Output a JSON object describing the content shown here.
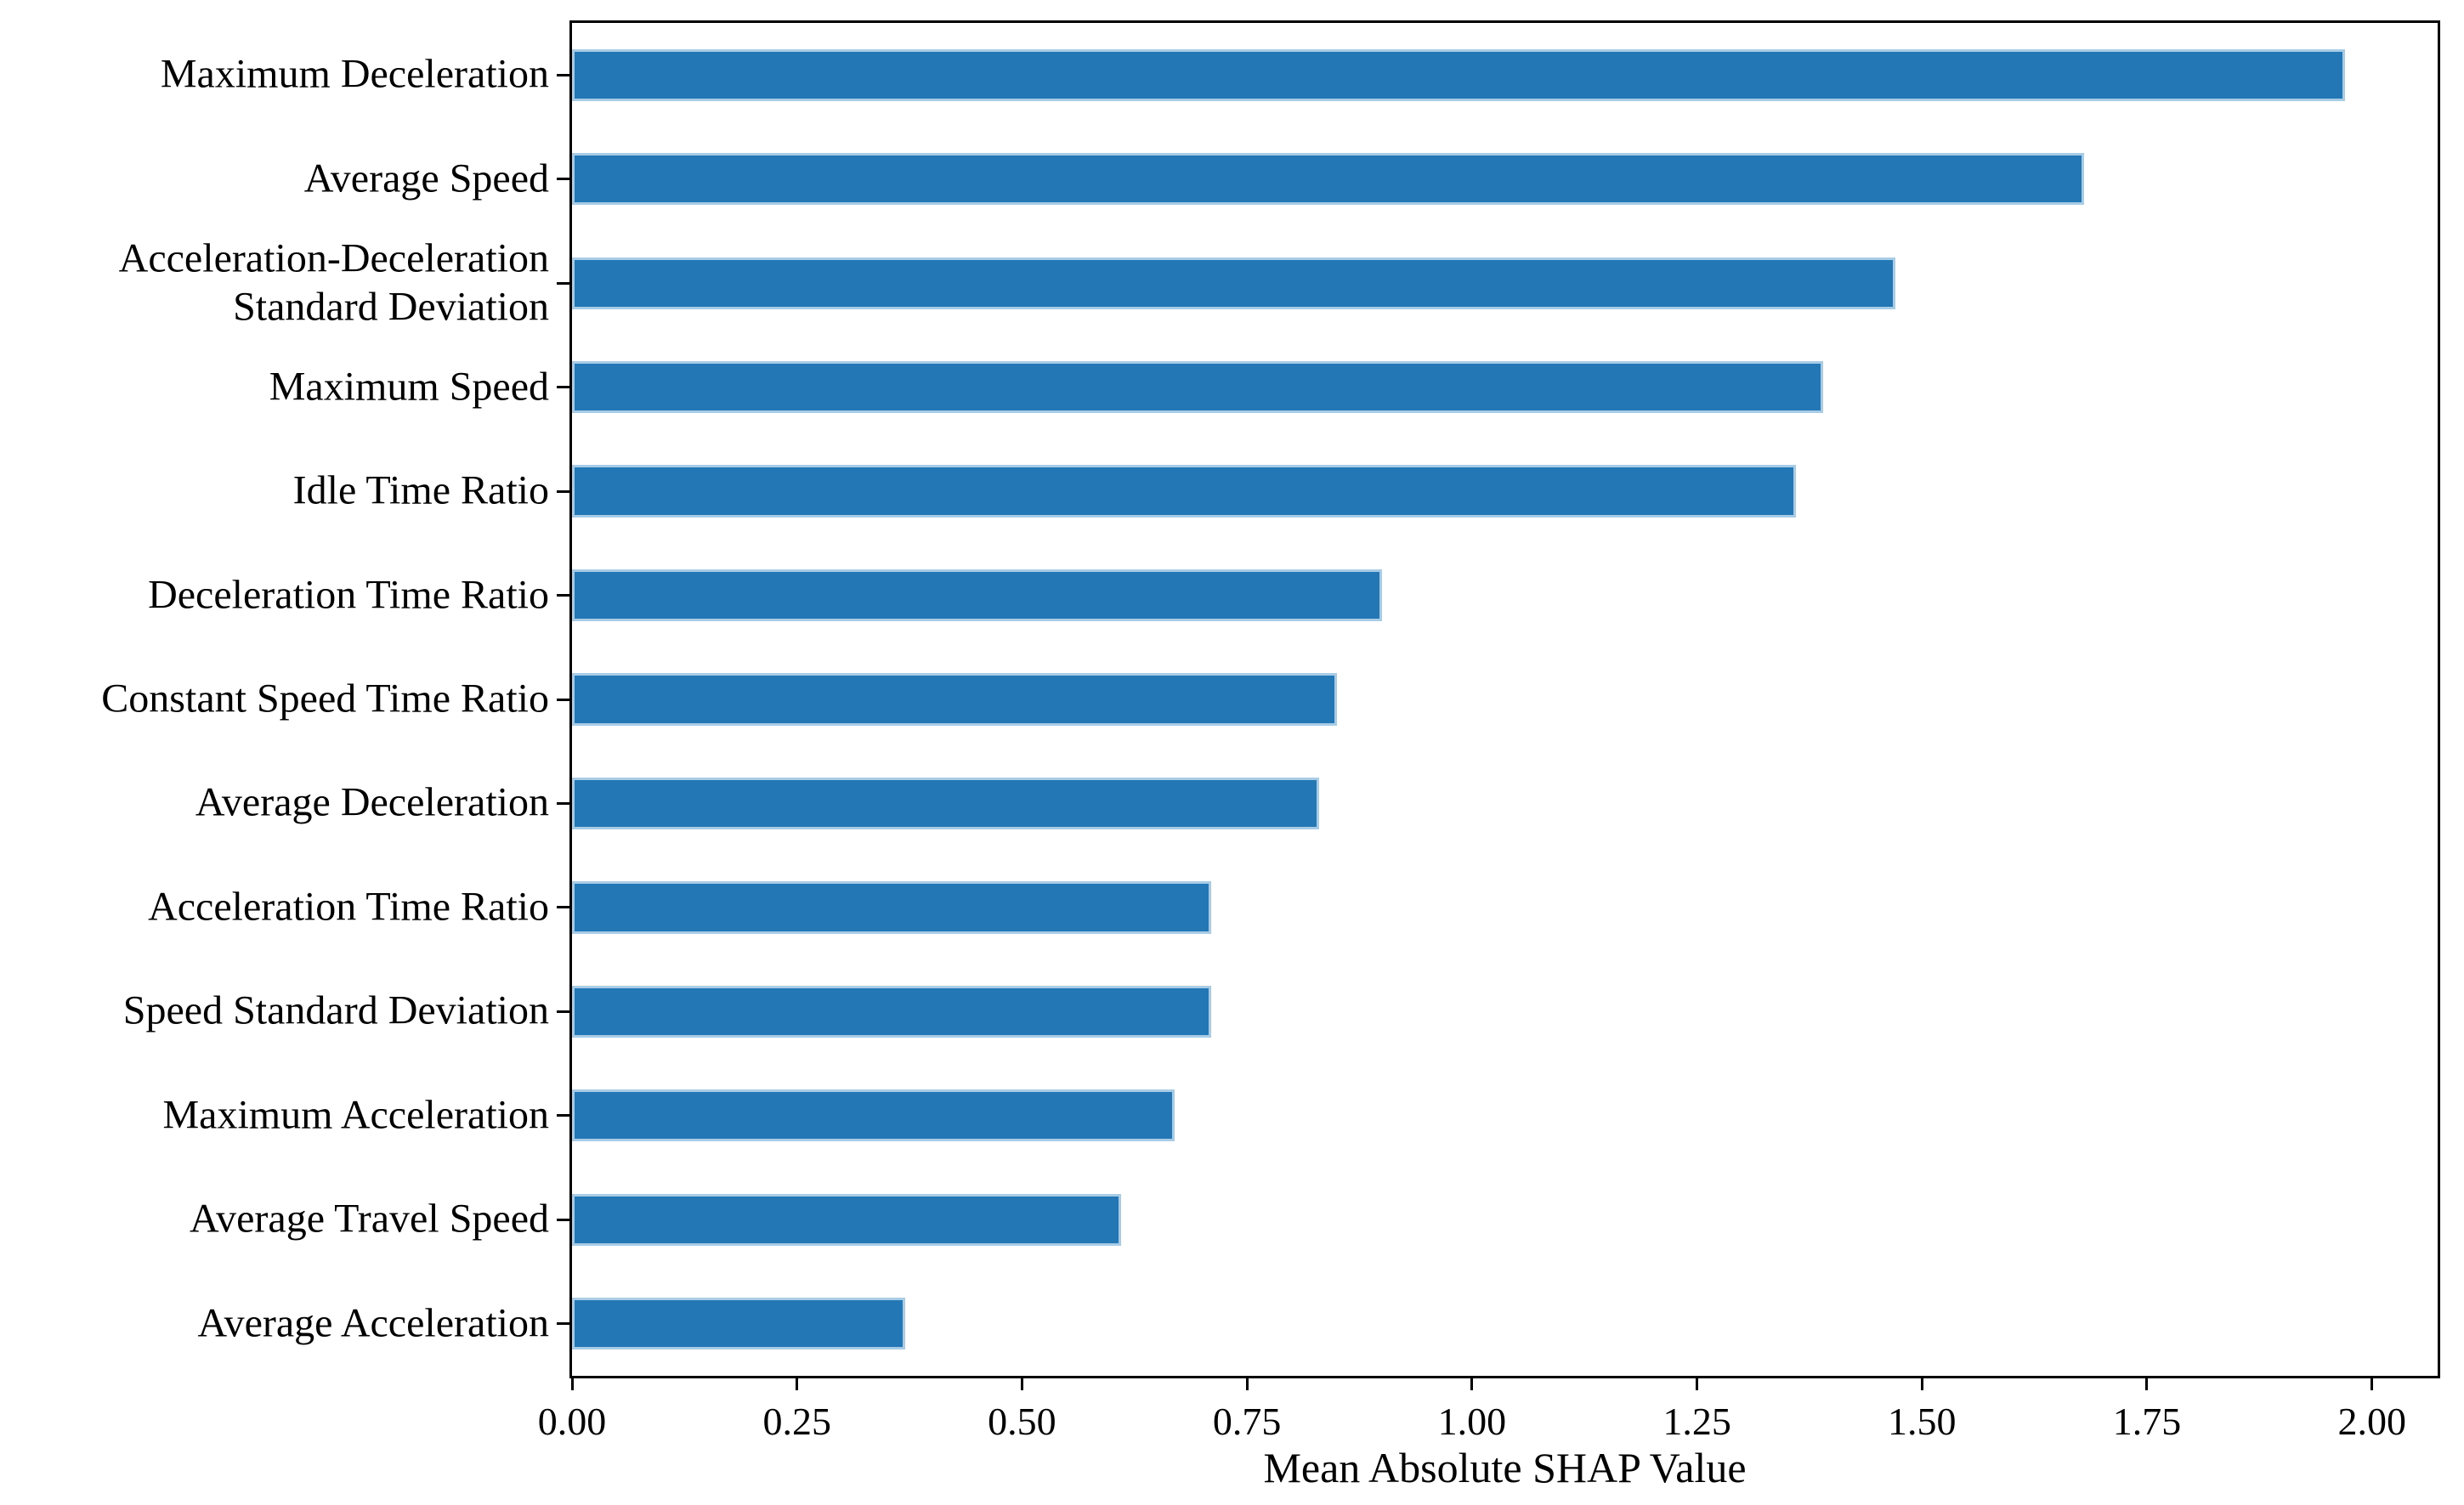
{
  "figure": {
    "background_color": "#ffffff",
    "axis_color": "#000000",
    "text_color": "#000000"
  },
  "chart_data": {
    "type": "bar",
    "orientation": "horizontal",
    "title": "",
    "xlabel": "Mean Absolute SHAP Value",
    "ylabel": "",
    "categories": [
      "Maximum Deceleration",
      "Average Speed",
      "Acceleration-Deceleration\nStandard  Deviation",
      "Maximum Speed",
      "Idle Time Ratio",
      "Deceleration Time Ratio",
      "Constant Speed Time Ratio",
      "Average Deceleration",
      "Acceleration Time Ratio",
      "Speed Standard Deviation",
      "Maximum Acceleration",
      "Average Travel Speed",
      "Average Acceleration"
    ],
    "values": [
      1.97,
      1.68,
      1.47,
      1.39,
      1.36,
      0.9,
      0.85,
      0.83,
      0.71,
      0.71,
      0.67,
      0.61,
      0.37
    ],
    "xlim": [
      0,
      2.073
    ],
    "xticks": [
      0.0,
      0.25,
      0.5,
      0.75,
      1.0,
      1.25,
      1.5,
      1.75,
      2.0
    ],
    "xtick_labels": [
      "0.00",
      "0.25",
      "0.50",
      "0.75",
      "1.00",
      "1.25",
      "1.50",
      "1.75",
      "2.00"
    ],
    "bar_color": "#2277b4",
    "bar_edge_color": "#a9cce6",
    "bar_width_fraction": 0.5,
    "grid": false,
    "legend": null
  }
}
